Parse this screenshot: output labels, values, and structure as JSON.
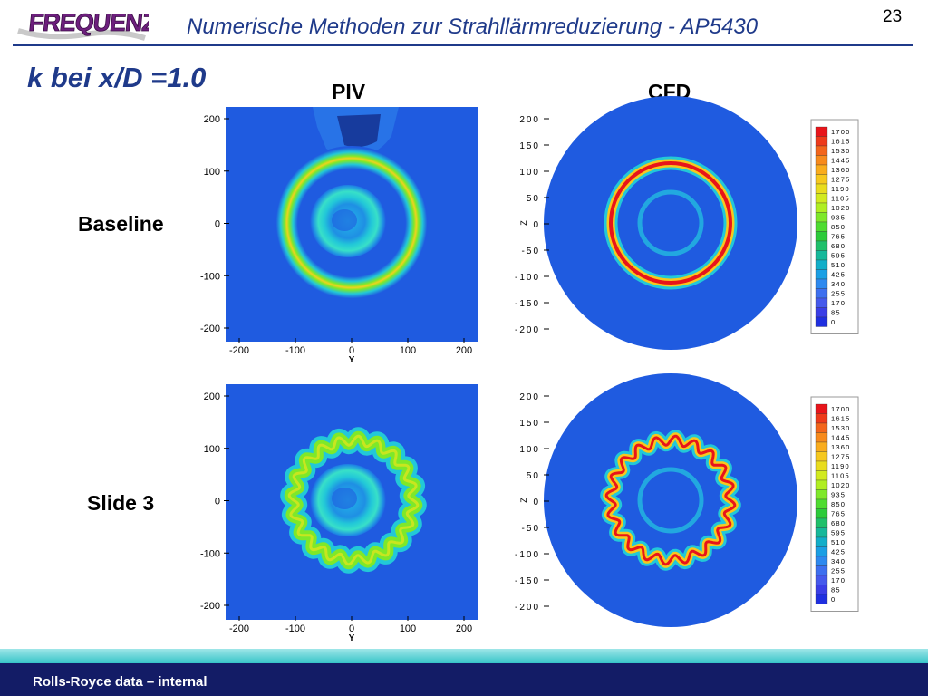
{
  "header": {
    "logo_text": "FREQUENZ",
    "title": "Numerische Methoden zur Strahllärmreduzierung - AP5430",
    "page_number": "23"
  },
  "heading": "k bei x/D =1.0",
  "columns": {
    "piv": "PIV",
    "cfd": "CFD"
  },
  "rows": {
    "baseline": "Baseline",
    "slide3": "Slide 3"
  },
  "axes": {
    "piv_y_ticks": [
      "200",
      "100",
      "0",
      "-100",
      "-200"
    ],
    "piv_x_ticks": [
      "-200",
      "-100",
      "0",
      "100",
      "200"
    ],
    "piv_x_label": "Y",
    "cfd_y_ticks": [
      "200",
      "150",
      "100",
      "50",
      "0",
      "-50",
      "-100",
      "-150",
      "-200"
    ],
    "cfd_y_label": "Z"
  },
  "legend": {
    "levels": [
      "1700",
      "1615",
      "1530",
      "1445",
      "1360",
      "1275",
      "1190",
      "1105",
      "1020",
      "935",
      "850",
      "765",
      "680",
      "595",
      "510",
      "425",
      "340",
      "255",
      "170",
      "85",
      "0"
    ],
    "colors": [
      "#e8141a",
      "#ee3a1a",
      "#f3651b",
      "#f78a1c",
      "#f9ac1d",
      "#f6c81e",
      "#e9dc1e",
      "#d2ea1f",
      "#b0ee22",
      "#7ee82a",
      "#4edc30",
      "#2ccb3a",
      "#1fc06a",
      "#16b89a",
      "#12aec9",
      "#1a9fe4",
      "#2d89ef",
      "#3d6fef",
      "#4559ec",
      "#3a3ee6",
      "#1f2fe0"
    ]
  },
  "colors": {
    "field_blue": "#1f5be0",
    "title_blue": "#1f3a8a",
    "footer_cyan": "#35c4c8",
    "footer_navy": "#131c66"
  },
  "footer": {
    "text": "Rolls-Royce data – internal"
  }
}
